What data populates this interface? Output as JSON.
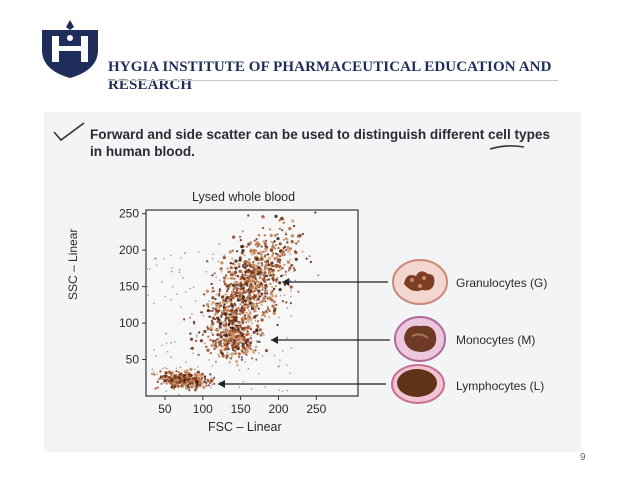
{
  "header": {
    "institute_name": "HYGIA INSTITUTE OF PHARMACEUTICAL EDUCATION AND RESEARCH",
    "brand_color": "#1f2d5a",
    "logo_icon": "hygia-shield-logo-icon"
  },
  "slide": {
    "caption": "Forward and side scatter can be used to distinguish different cell types in human blood.",
    "page_number": "9"
  },
  "chart_data": {
    "type": "scatter",
    "title": "Lysed whole blood",
    "xlabel": "FSC – Linear",
    "ylabel": "SSC – Linear",
    "xlim": [
      25,
      305
    ],
    "ylim": [
      0,
      255
    ],
    "xticks": [
      50,
      100,
      150,
      200,
      250
    ],
    "yticks": [
      50,
      100,
      150,
      200,
      250
    ],
    "populations": [
      {
        "name": "Granulocytes (G)",
        "center": [
          160,
          150
        ],
        "spread": [
          22,
          40
        ]
      },
      {
        "name": "Monocytes (M)",
        "center": [
          145,
          80
        ],
        "spread": [
          14,
          14
        ]
      },
      {
        "name": "Lymphocytes (L)",
        "center": [
          75,
          22
        ],
        "spread": [
          16,
          5
        ]
      }
    ],
    "cell_colors": {
      "granulocyte": "#8b4a2a",
      "monocyte": "#7a4a3a",
      "lymphocyte": "#5e3318"
    }
  }
}
